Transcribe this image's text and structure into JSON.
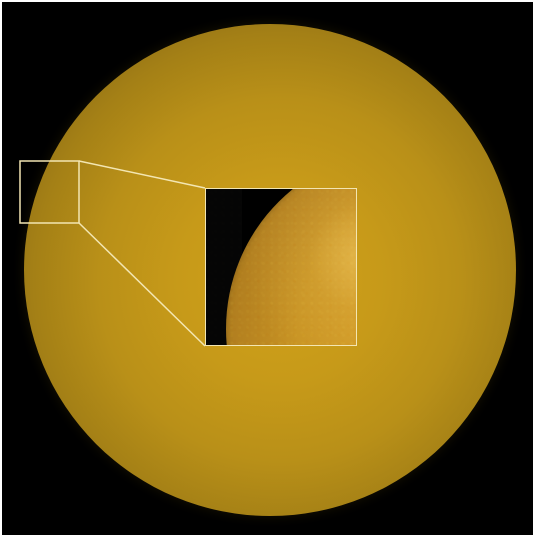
{
  "image": {
    "subject": "sun-disk",
    "colors": {
      "background": "#000000",
      "disk_center": "#d0a11a",
      "disk_edge": "#4a390b",
      "inset_border": "#f3e6b2",
      "inset_surface": "#d39c27"
    }
  }
}
